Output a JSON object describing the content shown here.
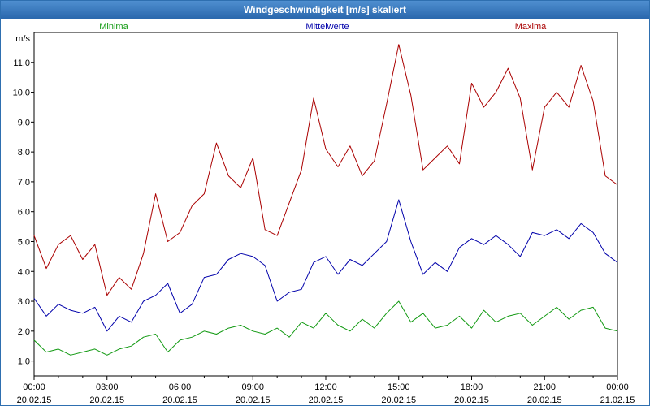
{
  "window": {
    "title": "Windgeschwindigkeit [m/s] skaliert"
  },
  "colors": {
    "minima": "#119911",
    "mittelwerte": "#0000aa",
    "maxima": "#aa0000"
  },
  "chart_data": {
    "type": "line",
    "title": "Windgeschwindigkeit [m/s] skaliert",
    "ylabel": "m/s",
    "xlabel": "",
    "ylim": [
      0.5,
      12
    ],
    "xlim": [
      0,
      24
    ],
    "grid": true,
    "legend": "top",
    "y_ticks": [
      "1,0",
      "2,0",
      "3,0",
      "4,0",
      "5,0",
      "6,0",
      "7,0",
      "8,0",
      "9,0",
      "10,0",
      "11,0"
    ],
    "x_ticks": [
      {
        "time": "00:00",
        "date": "20.02.15"
      },
      {
        "time": "03:00",
        "date": "20.02.15"
      },
      {
        "time": "06:00",
        "date": "20.02.15"
      },
      {
        "time": "09:00",
        "date": "20.02.15"
      },
      {
        "time": "12:00",
        "date": "20.02.15"
      },
      {
        "time": "15:00",
        "date": "20.02.15"
      },
      {
        "time": "18:00",
        "date": "20.02.15"
      },
      {
        "time": "21:00",
        "date": "20.02.15"
      },
      {
        "time": "00:00",
        "date": "21.02.15"
      }
    ],
    "x_hours": [
      0,
      0.5,
      1,
      1.5,
      2,
      2.5,
      3,
      3.5,
      4,
      4.5,
      5,
      5.5,
      6,
      6.5,
      7,
      7.5,
      8,
      8.5,
      9,
      9.5,
      10,
      10.5,
      11,
      11.5,
      12,
      12.5,
      13,
      13.5,
      14,
      14.5,
      15,
      15.5,
      16,
      16.5,
      17,
      17.5,
      18,
      18.5,
      19,
      19.5,
      20,
      20.5,
      21,
      21.5,
      22,
      22.5,
      23,
      23.5,
      24
    ],
    "series": [
      {
        "name": "Minima",
        "color": "#119911",
        "values": [
          1.7,
          1.3,
          1.4,
          1.2,
          1.3,
          1.4,
          1.2,
          1.4,
          1.5,
          1.8,
          1.9,
          1.3,
          1.7,
          1.8,
          2.0,
          1.9,
          2.1,
          2.2,
          2.0,
          1.9,
          2.1,
          1.8,
          2.3,
          2.1,
          2.6,
          2.2,
          2.0,
          2.4,
          2.1,
          2.6,
          3.0,
          2.3,
          2.6,
          2.1,
          2.2,
          2.5,
          2.1,
          2.7,
          2.3,
          2.5,
          2.6,
          2.2,
          2.5,
          2.8,
          2.4,
          2.7,
          2.8,
          2.1,
          2.0
        ]
      },
      {
        "name": "Mittelwerte",
        "color": "#0000aa",
        "values": [
          3.1,
          2.5,
          2.9,
          2.7,
          2.6,
          2.8,
          2.0,
          2.5,
          2.3,
          3.0,
          3.2,
          3.6,
          2.6,
          2.9,
          3.8,
          3.9,
          4.4,
          4.6,
          4.5,
          4.2,
          3.0,
          3.3,
          3.4,
          4.3,
          4.5,
          3.9,
          4.4,
          4.2,
          4.6,
          5.0,
          6.4,
          5.0,
          3.9,
          4.3,
          4.0,
          4.8,
          5.1,
          4.9,
          5.2,
          4.9,
          4.5,
          5.3,
          5.2,
          5.4,
          5.1,
          5.6,
          5.3,
          4.6,
          4.3
        ]
      },
      {
        "name": "Maxima",
        "color": "#aa0000",
        "values": [
          5.2,
          4.1,
          4.9,
          5.2,
          4.4,
          4.9,
          3.2,
          3.8,
          3.4,
          4.6,
          6.6,
          5.0,
          5.3,
          6.2,
          6.6,
          8.3,
          7.2,
          6.8,
          7.8,
          5.4,
          5.2,
          6.3,
          7.4,
          9.8,
          8.1,
          7.5,
          8.2,
          7.2,
          7.7,
          9.6,
          11.6,
          9.9,
          7.4,
          7.8,
          8.2,
          7.6,
          10.3,
          9.5,
          10.0,
          10.8,
          9.8,
          7.4,
          9.5,
          10.0,
          9.5,
          10.9,
          9.7,
          7.2,
          6.9
        ]
      }
    ]
  }
}
